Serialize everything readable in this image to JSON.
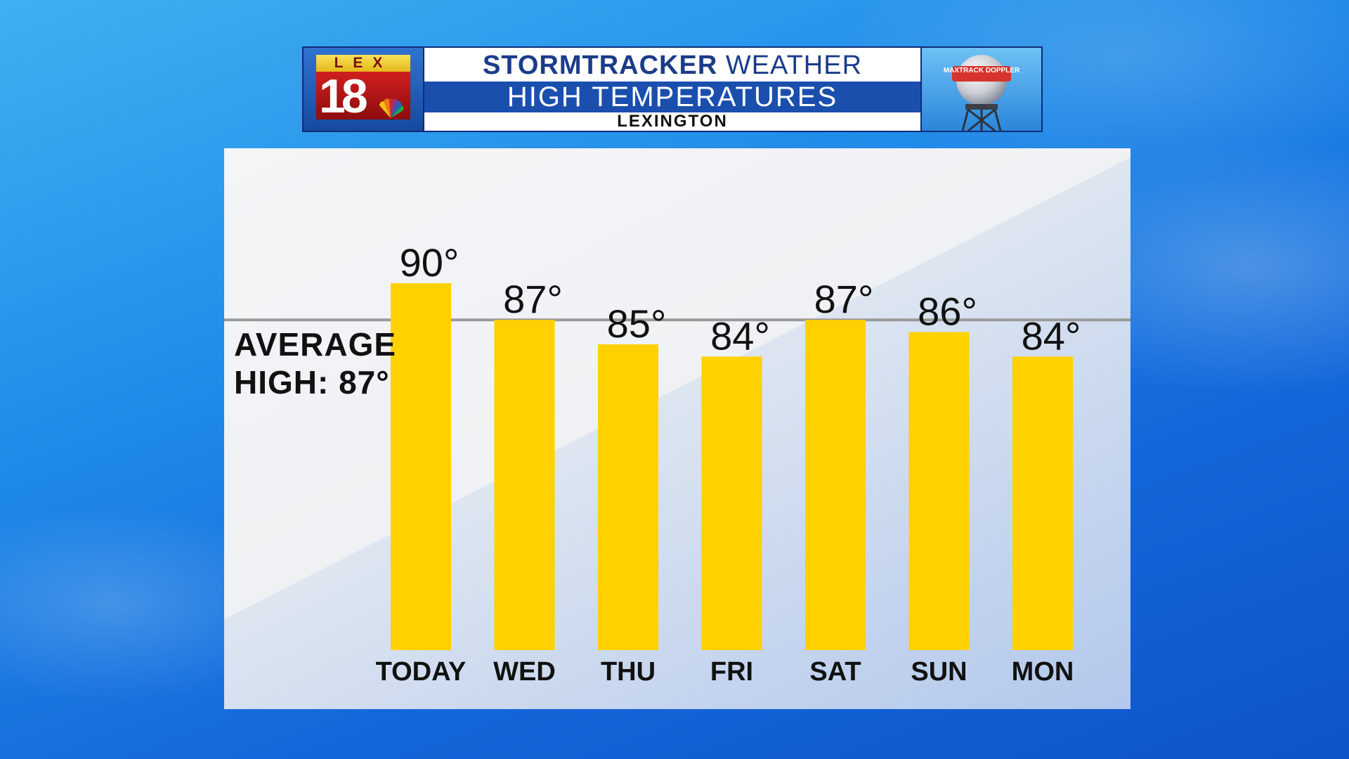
{
  "header": {
    "logo_top": "LEX",
    "logo_number": "18",
    "doppler_badge": "MAXTRACK DOPPLER",
    "title_bold": "STORMTRACKER",
    "title_rest": "WEATHER",
    "subtitle": "HIGH TEMPERATURES",
    "location": "LEXINGTON"
  },
  "average": {
    "line1": "AVERAGE",
    "line2": "HIGH: 87°"
  },
  "chart_data": {
    "type": "bar",
    "categories": [
      "TODAY",
      "WED",
      "THU",
      "FRI",
      "SAT",
      "SUN",
      "MON"
    ],
    "values": [
      90,
      87,
      85,
      84,
      87,
      86,
      84
    ],
    "labels": [
      "90°",
      "87°",
      "85°",
      "84°",
      "87°",
      "86°",
      "84°"
    ],
    "reference_line": 87,
    "ylim": [
      60,
      90
    ],
    "grid": false,
    "bar_color": "#ffd100"
  },
  "colors": {
    "header_blue": "#1a4fae",
    "reference_line": "#9a9a9a"
  }
}
